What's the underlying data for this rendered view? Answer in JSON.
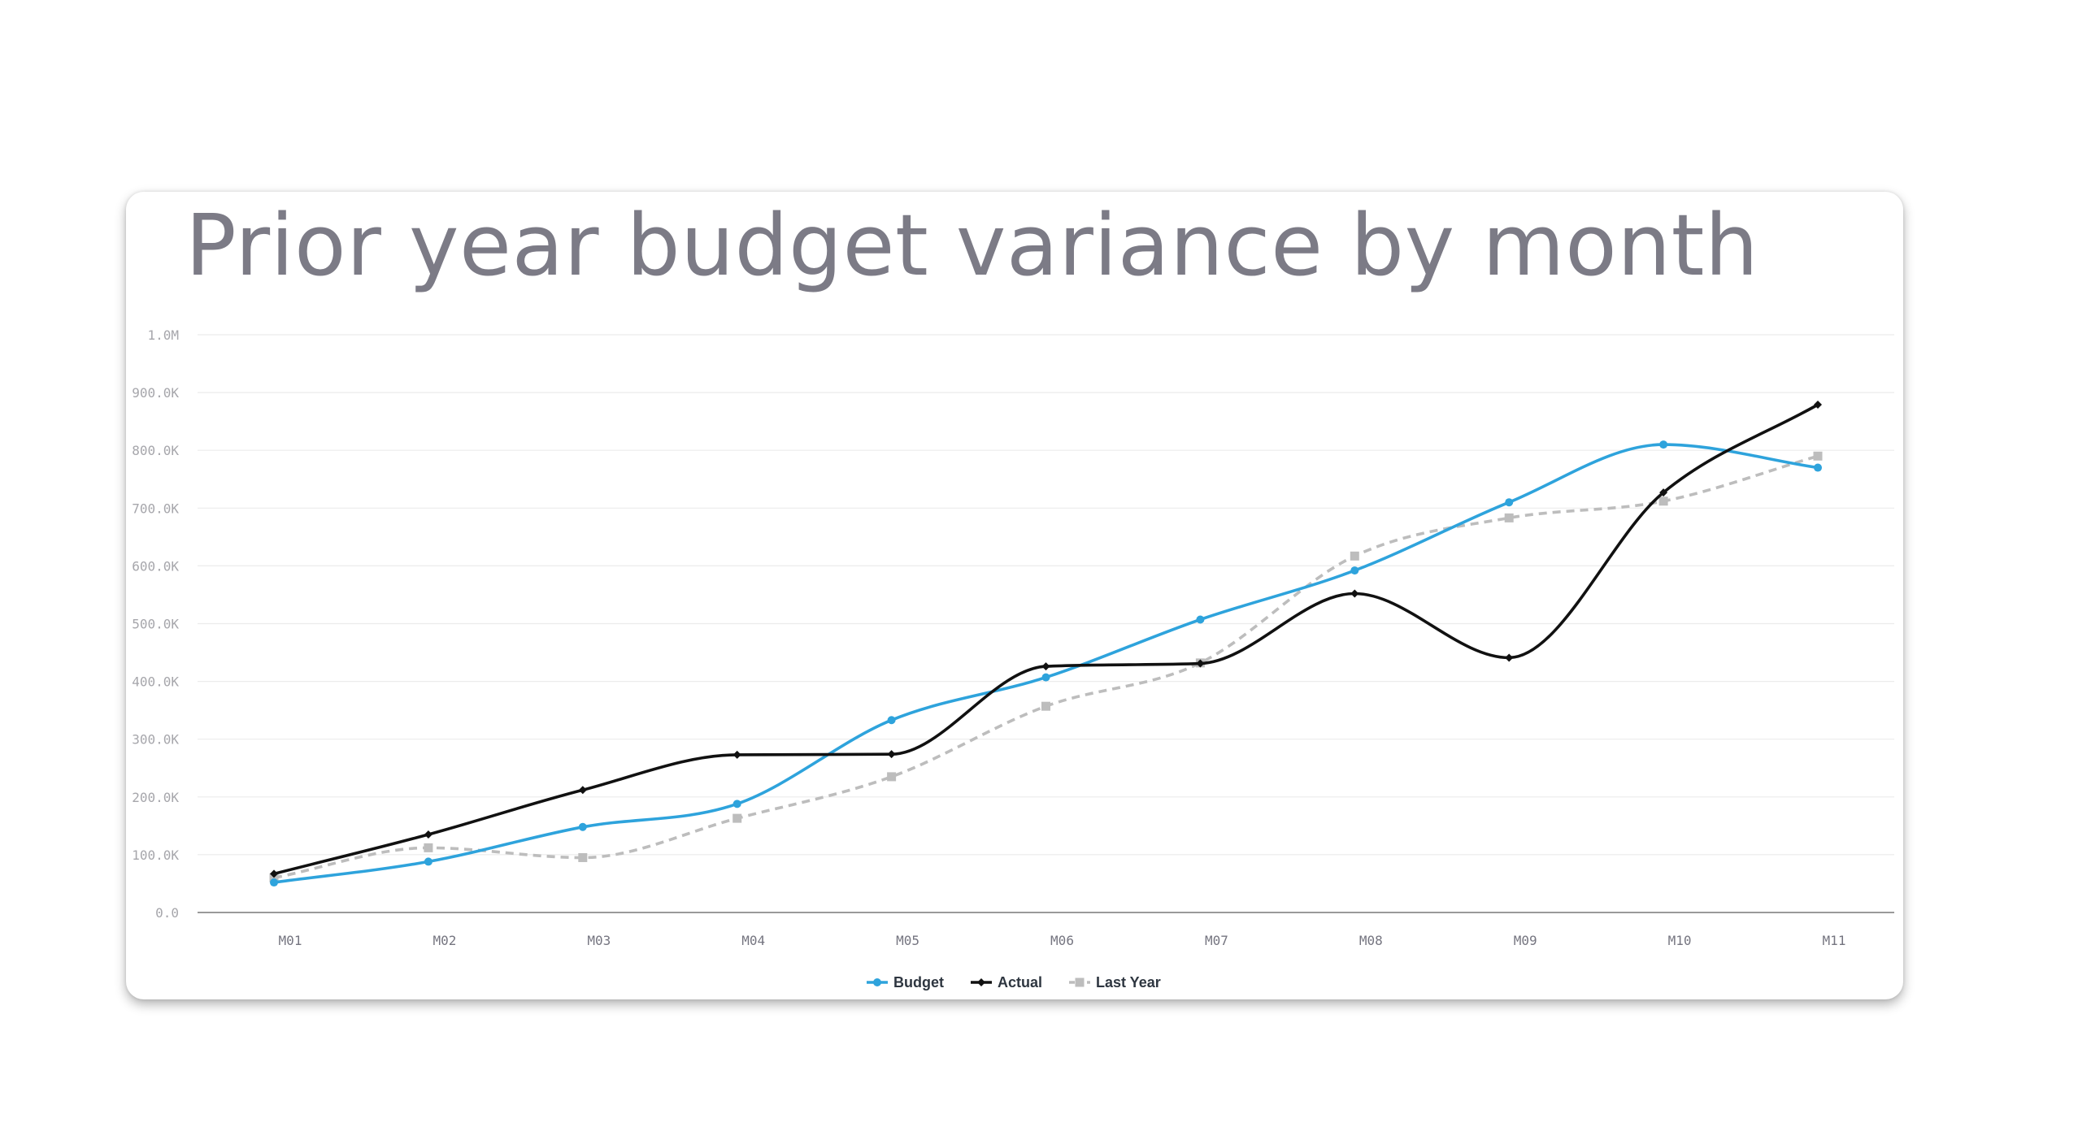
{
  "chart_data": {
    "type": "line",
    "title": "Prior year budget variance by month",
    "xlabel": "",
    "ylabel": "",
    "categories": [
      "M01",
      "M02",
      "M03",
      "M04",
      "M05",
      "M06",
      "M07",
      "M08",
      "M09",
      "M10",
      "M11"
    ],
    "ylim": [
      0,
      1000000
    ],
    "yticks": [
      0,
      100000,
      200000,
      300000,
      400000,
      500000,
      600000,
      700000,
      800000,
      900000,
      1000000
    ],
    "ytick_labels": [
      "0.0",
      "100.0K",
      "200.0K",
      "300.0K",
      "400.0K",
      "500.0K",
      "600.0K",
      "700.0K",
      "800.0K",
      "900.0K",
      "1.0M"
    ],
    "grid": true,
    "legend_position": "bottom-center",
    "series": [
      {
        "name": "Budget",
        "color": "#2ea3dc",
        "marker": "circle",
        "style": "solid",
        "values": [
          52000,
          88000,
          148000,
          188000,
          333000,
          407000,
          507000,
          592000,
          710000,
          810000,
          770000
        ]
      },
      {
        "name": "Actual",
        "color": "#111111",
        "marker": "diamond",
        "style": "solid",
        "values": [
          67000,
          135000,
          212000,
          273000,
          274000,
          426000,
          431000,
          552000,
          441000,
          727000,
          879000
        ]
      },
      {
        "name": "Last Year",
        "color": "#bdbdbd",
        "marker": "square",
        "style": "dashed",
        "values": [
          60000,
          112000,
          95000,
          163000,
          235000,
          357000,
          432000,
          617000,
          683000,
          712000,
          790000
        ]
      }
    ]
  }
}
